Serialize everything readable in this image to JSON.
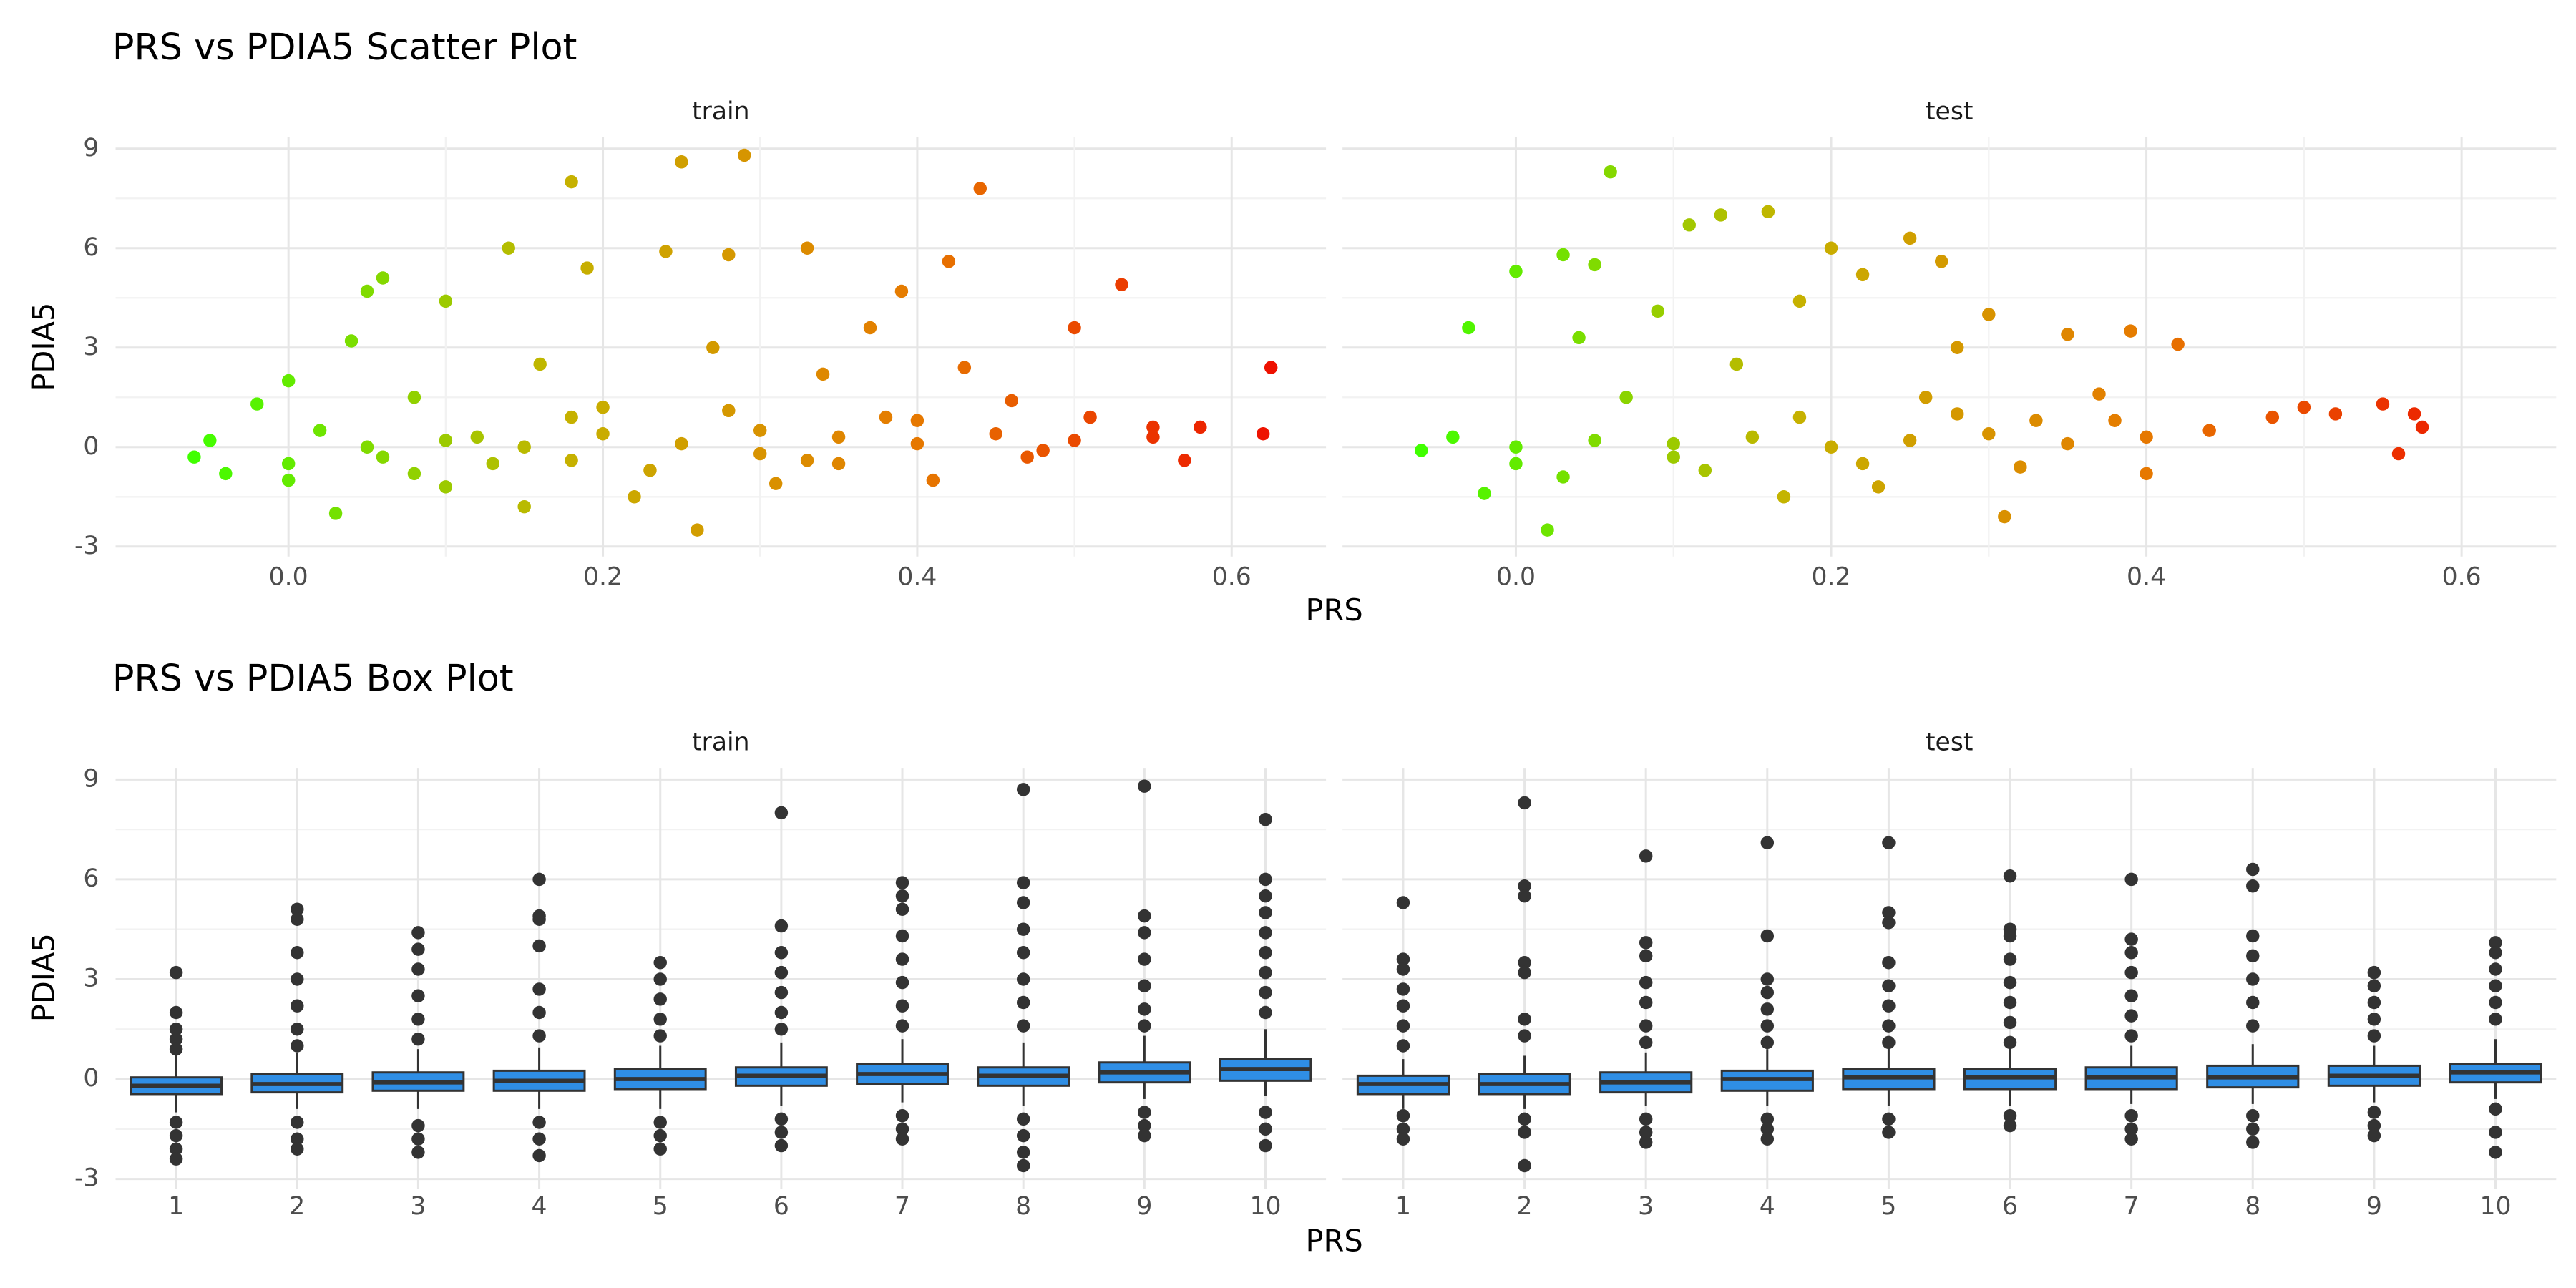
{
  "chart_data": [
    {
      "type": "scatter",
      "title": "PRS vs PDIA5 Scatter Plot",
      "x_label": "PRS",
      "y_label": "PDIA5",
      "xlim": [
        -0.11,
        0.66
      ],
      "xticks": [
        {
          "value": 0,
          "label": "0.0"
        },
        {
          "value": 0.2,
          "label": "0.2"
        },
        {
          "value": 0.4,
          "label": "0.4"
        },
        {
          "value": 0.6,
          "label": "0.6"
        }
      ],
      "ylim": [
        -3.3,
        9.35
      ],
      "yticks": [
        -3,
        0,
        3,
        6,
        9
      ],
      "grid": true,
      "color_scale": [
        "#40ff00",
        "#c4b400",
        "#e67a00",
        "#ee1100"
      ],
      "facets": [
        {
          "label": "train",
          "x": [
            -0.06,
            -0.05,
            -0.04,
            -0.02,
            0.0,
            0.0,
            0.02,
            0.03,
            0.04,
            0.05,
            0.06,
            0.06,
            0.08,
            0.1,
            0.1,
            0.12,
            0.14,
            0.15,
            0.16,
            0.18,
            0.18,
            0.19,
            0.2,
            0.22,
            0.24,
            0.25,
            0.26,
            0.27,
            0.28,
            0.29,
            0.3,
            0.31,
            0.33,
            0.34,
            0.35,
            0.37,
            0.39,
            0.4,
            0.41,
            0.42,
            0.43,
            0.44,
            0.46,
            0.47,
            0.5,
            0.51,
            0.53,
            0.55,
            0.57,
            0.58,
            0.62,
            0.625,
            0.0,
            0.05,
            0.1,
            0.15,
            0.2,
            0.25,
            0.3,
            0.35,
            0.4,
            0.45,
            0.5,
            0.55,
            0.08,
            0.13,
            0.23,
            0.33,
            0.38,
            0.48,
            0.28,
            0.18
          ],
          "values": [
            -0.3,
            0.2,
            -0.8,
            1.3,
            2.0,
            -0.5,
            0.5,
            -2.0,
            3.2,
            4.7,
            5.1,
            -0.3,
            1.5,
            4.4,
            -1.2,
            0.3,
            6.0,
            -1.8,
            2.5,
            8.0,
            -0.4,
            5.4,
            1.2,
            -1.5,
            5.9,
            8.6,
            -2.5,
            3.0,
            5.8,
            8.8,
            0.5,
            -1.1,
            6.0,
            2.2,
            -0.5,
            3.6,
            4.7,
            0.8,
            -1.0,
            5.6,
            2.4,
            7.8,
            1.4,
            -0.3,
            3.6,
            0.9,
            4.9,
            0.3,
            -0.4,
            0.6,
            0.4,
            2.4,
            -1.0,
            0.0,
            0.2,
            0.0,
            0.4,
            0.1,
            -0.2,
            0.3,
            0.1,
            0.4,
            0.2,
            0.6,
            -0.8,
            -0.5,
            -0.7,
            -0.4,
            0.9,
            -0.1,
            1.1,
            0.9
          ]
        },
        {
          "label": "test",
          "x": [
            -0.06,
            -0.04,
            -0.03,
            -0.02,
            0.0,
            0.0,
            0.02,
            0.03,
            0.04,
            0.05,
            0.06,
            0.07,
            0.09,
            0.1,
            0.11,
            0.13,
            0.14,
            0.16,
            0.17,
            0.18,
            0.2,
            0.22,
            0.23,
            0.25,
            0.26,
            0.27,
            0.28,
            0.3,
            0.31,
            0.33,
            0.35,
            0.37,
            0.39,
            0.4,
            0.42,
            0.44,
            0.48,
            0.5,
            0.52,
            0.55,
            0.56,
            0.57,
            0.575,
            0.0,
            0.05,
            0.1,
            0.15,
            0.2,
            0.25,
            0.3,
            0.35,
            0.4,
            0.03,
            0.12,
            0.22,
            0.32,
            0.18,
            0.28,
            0.38
          ],
          "values": [
            -0.1,
            0.3,
            3.6,
            -1.4,
            5.3,
            -0.5,
            -2.5,
            5.8,
            3.3,
            5.5,
            8.3,
            1.5,
            4.1,
            -0.3,
            6.7,
            7.0,
            2.5,
            7.1,
            -1.5,
            4.4,
            6.0,
            5.2,
            -1.2,
            6.3,
            1.5,
            5.6,
            3.0,
            4.0,
            -2.1,
            0.8,
            3.4,
            1.6,
            3.5,
            -0.8,
            3.1,
            0.5,
            0.9,
            1.2,
            1.0,
            1.3,
            -0.2,
            1.0,
            0.6,
            0.0,
            0.2,
            0.1,
            0.3,
            0.0,
            0.2,
            0.4,
            0.1,
            0.3,
            -0.9,
            -0.7,
            -0.5,
            -0.6,
            0.9,
            1.0,
            0.8
          ]
        }
      ]
    },
    {
      "type": "box",
      "title": "PRS vs PDIA5 Box Plot",
      "x_label": "PRS",
      "y_label": "PDIA5",
      "categories": [
        "1",
        "2",
        "3",
        "4",
        "5",
        "6",
        "7",
        "8",
        "9",
        "10"
      ],
      "ylim": [
        -3.3,
        9.35
      ],
      "yticks": [
        -3,
        0,
        3,
        6,
        9
      ],
      "grid": true,
      "color": "#2f8ee5",
      "facets": [
        {
          "label": "train",
          "boxes": [
            {
              "low": -1.0,
              "q1": -0.45,
              "median": -0.2,
              "q3": 0.05,
              "high": 0.75,
              "outliers": [
                3.2,
                2.0,
                1.5,
                1.2,
                0.9,
                -1.3,
                -1.7,
                -2.1,
                -2.4
              ]
            },
            {
              "low": -0.9,
              "q1": -0.4,
              "median": -0.15,
              "q3": 0.15,
              "high": 0.8,
              "outliers": [
                5.1,
                4.8,
                3.8,
                3.0,
                2.2,
                1.5,
                1.0,
                -1.3,
                -1.8,
                -2.1
              ]
            },
            {
              "low": -0.9,
              "q1": -0.35,
              "median": -0.1,
              "q3": 0.2,
              "high": 0.9,
              "outliers": [
                4.4,
                3.9,
                3.3,
                2.5,
                1.8,
                1.2,
                -1.4,
                -1.8,
                -2.2
              ]
            },
            {
              "low": -0.9,
              "q1": -0.35,
              "median": -0.05,
              "q3": 0.25,
              "high": 0.95,
              "outliers": [
                6.0,
                4.9,
                4.8,
                4.0,
                2.7,
                2.0,
                1.3,
                -1.3,
                -1.8,
                -2.3
              ]
            },
            {
              "low": -0.9,
              "q1": -0.3,
              "median": 0.0,
              "q3": 0.3,
              "high": 1.0,
              "outliers": [
                3.5,
                3.0,
                2.4,
                1.8,
                1.3,
                -1.3,
                -1.7,
                -2.1
              ]
            },
            {
              "low": -0.8,
              "q1": -0.2,
              "median": 0.1,
              "q3": 0.35,
              "high": 1.1,
              "outliers": [
                8.0,
                4.6,
                3.8,
                3.2,
                2.6,
                2.0,
                1.5,
                -1.2,
                -1.6,
                -2.0
              ]
            },
            {
              "low": -0.7,
              "q1": -0.15,
              "median": 0.15,
              "q3": 0.45,
              "high": 1.2,
              "outliers": [
                5.9,
                5.5,
                5.1,
                4.3,
                3.6,
                2.9,
                2.2,
                1.6,
                -1.1,
                -1.5,
                -1.8
              ]
            },
            {
              "low": -0.8,
              "q1": -0.2,
              "median": 0.1,
              "q3": 0.35,
              "high": 1.1,
              "outliers": [
                8.7,
                5.9,
                5.3,
                4.5,
                3.8,
                3.0,
                2.3,
                1.6,
                -1.2,
                -1.7,
                -2.2,
                -2.6
              ]
            },
            {
              "low": -0.6,
              "q1": -0.1,
              "median": 0.2,
              "q3": 0.5,
              "high": 1.3,
              "outliers": [
                8.8,
                4.9,
                4.4,
                3.6,
                2.8,
                2.1,
                1.6,
                -1.0,
                -1.4,
                -1.7
              ]
            },
            {
              "low": -0.5,
              "q1": -0.05,
              "median": 0.3,
              "q3": 0.6,
              "high": 1.5,
              "outliers": [
                7.8,
                6.0,
                5.5,
                5.0,
                4.4,
                3.8,
                3.2,
                2.6,
                2.0,
                -1.0,
                -1.5,
                -2.0
              ]
            }
          ]
        },
        {
          "label": "test",
          "boxes": [
            {
              "low": -0.9,
              "q1": -0.45,
              "median": -0.15,
              "q3": 0.1,
              "high": 0.6,
              "outliers": [
                5.3,
                3.6,
                3.3,
                2.7,
                2.2,
                1.6,
                1.0,
                -1.1,
                -1.5,
                -1.8
              ]
            },
            {
              "low": -0.9,
              "q1": -0.45,
              "median": -0.15,
              "q3": 0.15,
              "high": 0.7,
              "outliers": [
                8.3,
                5.8,
                5.5,
                3.5,
                3.2,
                1.8,
                1.3,
                -1.2,
                -1.6,
                -2.6
              ]
            },
            {
              "low": -0.8,
              "q1": -0.4,
              "median": -0.1,
              "q3": 0.2,
              "high": 0.8,
              "outliers": [
                6.7,
                4.1,
                3.7,
                2.9,
                2.3,
                1.6,
                1.1,
                -1.2,
                -1.6,
                -1.9
              ]
            },
            {
              "low": -0.8,
              "q1": -0.35,
              "median": 0.0,
              "q3": 0.25,
              "high": 0.9,
              "outliers": [
                7.1,
                4.3,
                3.0,
                2.6,
                2.1,
                1.6,
                1.1,
                -1.2,
                -1.5,
                -1.8
              ]
            },
            {
              "low": -0.8,
              "q1": -0.3,
              "median": 0.05,
              "q3": 0.3,
              "high": 1.0,
              "outliers": [
                7.1,
                5.0,
                4.7,
                3.5,
                2.8,
                2.2,
                1.6,
                1.1,
                -1.2,
                -1.6
              ]
            },
            {
              "low": -0.8,
              "q1": -0.3,
              "median": 0.05,
              "q3": 0.3,
              "high": 0.95,
              "outliers": [
                6.1,
                4.5,
                4.3,
                3.6,
                2.9,
                2.3,
                1.7,
                1.1,
                -1.1,
                -1.4
              ]
            },
            {
              "low": -0.75,
              "q1": -0.3,
              "median": 0.05,
              "q3": 0.35,
              "high": 1.0,
              "outliers": [
                6.0,
                4.2,
                3.8,
                3.2,
                2.5,
                1.9,
                1.3,
                -1.1,
                -1.5,
                -1.8
              ]
            },
            {
              "low": -0.75,
              "q1": -0.25,
              "median": 0.05,
              "q3": 0.4,
              "high": 1.05,
              "outliers": [
                6.3,
                5.8,
                4.3,
                3.7,
                3.0,
                2.3,
                1.6,
                -1.1,
                -1.5,
                -1.9
              ]
            },
            {
              "low": -0.7,
              "q1": -0.2,
              "median": 0.1,
              "q3": 0.4,
              "high": 1.0,
              "outliers": [
                3.2,
                2.8,
                2.3,
                1.8,
                1.3,
                -1.0,
                -1.4,
                -1.7
              ]
            },
            {
              "low": -0.6,
              "q1": -0.1,
              "median": 0.2,
              "q3": 0.45,
              "high": 1.2,
              "outliers": [
                4.1,
                3.8,
                3.3,
                2.8,
                2.3,
                1.8,
                -0.9,
                -1.6,
                -2.2
              ]
            }
          ]
        }
      ]
    }
  ]
}
